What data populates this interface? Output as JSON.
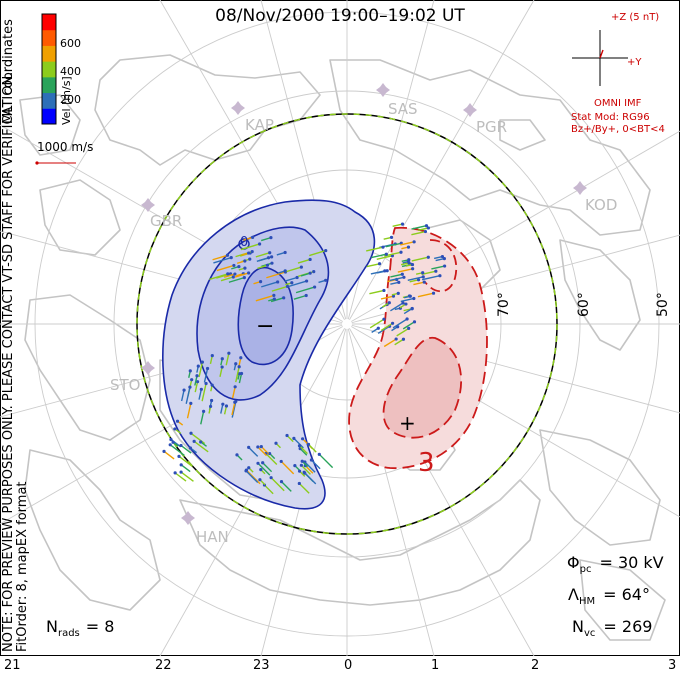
{
  "title": "08/Nov/2000  19:00–19:02  UT",
  "colorbar": {
    "label": "Vel [m/s]",
    "ticks": [
      "600",
      "400",
      "200"
    ],
    "colors": [
      "#0000ff",
      "#2d6fb8",
      "#29a35a",
      "#8ccc1c",
      "#f0a000",
      "#ff5a00",
      "#ff0000"
    ]
  },
  "side_notes": {
    "mlt": "MLT coordinates",
    "verification": "NOTE: FOR PREVIEW PURPOSES ONLY. PLEASE CONTACT VT-SD STAFF FOR VERIFICATION.",
    "fit": "FitOrder: 8, mapEX format"
  },
  "velocity_scale": "1000 m/s",
  "imf_panel": {
    "plus_z": "+Z (5 nT)",
    "plus_y": "+Y",
    "source": "OMNI IMF",
    "model": "Stat Mod: RG96",
    "conditions": "Bz+/By+, 0<BT<4"
  },
  "latitude_labels": [
    "70°",
    "60°",
    "50°"
  ],
  "mlt_axis": [
    "21",
    "22",
    "23",
    "0",
    "1",
    "2",
    "3"
  ],
  "stations": [
    "KAP",
    "SAS",
    "PGR",
    "KOD",
    "GBR",
    "STO",
    "HAN"
  ],
  "contour_labels": {
    "negative_label": "0",
    "positive_label": "3"
  },
  "markers": {
    "min": "−",
    "max": "+"
  },
  "stats": {
    "n_rads_label": "N",
    "n_rads_sub": "rads",
    "n_rads_value": "= 8",
    "phi_label": "Φ",
    "phi_sub": "pc",
    "phi_value": "= 30 kV",
    "lambda_label": "Λ",
    "lambda_sub": "HM",
    "lambda_value": "= 64°",
    "nvc_label": "N",
    "nvc_sub": "vc",
    "nvc_value": "= 269"
  },
  "colors": {
    "negative_fill": "#d4d8f0",
    "negative_core": "#aab2e6",
    "negative_line": "#1a2aa8",
    "positive_fill": "#f6dcdc",
    "positive_core": "#eec0c0",
    "positive_line": "#cc1a1a",
    "boundary_green": "#8ccc1c",
    "grid": "#cccccc",
    "coast": "#c4c4c4",
    "station": "#c8b8d0"
  }
}
